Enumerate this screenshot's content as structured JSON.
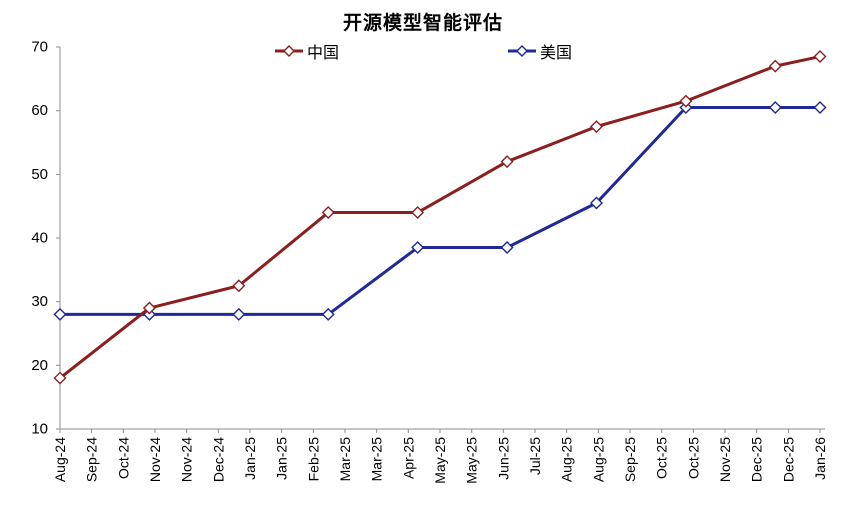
{
  "chart_data": {
    "type": "line",
    "title": "开源模型智能评估",
    "xlabel": "",
    "ylabel": "",
    "ylim": [
      10,
      70
    ],
    "y_ticks": [
      10,
      20,
      30,
      40,
      50,
      60,
      70
    ],
    "grid": false,
    "legend_position": "top-center",
    "marker_style": "diamond-white-fill",
    "axis_color": "#8C8C8C",
    "x_axis_span_months": 17,
    "x_tick_labels": [
      "Aug-24",
      "Sep-24",
      "Oct-24",
      "Nov-24",
      "Nov-24",
      "Dec-24",
      "Jan-25",
      "Jan-25",
      "Feb-25",
      "Mar-25",
      "Mar-25",
      "Apr-25",
      "May-25",
      "May-25",
      "Jun-25",
      "Jul-25",
      "Aug-25",
      "Aug-25",
      "Sep-25",
      "Oct-25",
      "Oct-25",
      "Nov-25",
      "Dec-25",
      "Dec-25",
      "Jan-26"
    ],
    "series": [
      {
        "id": "china",
        "name": "中国",
        "color": "#8C1E1E",
        "points": [
          {
            "label": "Aug-24",
            "m": 0,
            "value": 18
          },
          {
            "label": "Oct-24",
            "m": 2,
            "value": 29
          },
          {
            "label": "Dec-24",
            "m": 4,
            "value": 32.5
          },
          {
            "label": "Feb-25",
            "m": 6,
            "value": 44
          },
          {
            "label": "Apr-25",
            "m": 8,
            "value": 44
          },
          {
            "label": "Jun-25",
            "m": 10,
            "value": 52
          },
          {
            "label": "Aug-25",
            "m": 12,
            "value": 57.5
          },
          {
            "label": "Oct-25",
            "m": 14,
            "value": 61.5
          },
          {
            "label": "Dec-25",
            "m": 16,
            "value": 67
          },
          {
            "label": "Jan-26",
            "m": 17,
            "value": 68.5
          }
        ]
      },
      {
        "id": "us",
        "name": "美国",
        "color": "#1F2A96",
        "points": [
          {
            "label": "Aug-24",
            "m": 0,
            "value": 28
          },
          {
            "label": "Oct-24",
            "m": 2,
            "value": 28
          },
          {
            "label": "Dec-24",
            "m": 4,
            "value": 28
          },
          {
            "label": "Feb-25",
            "m": 6,
            "value": 28
          },
          {
            "label": "Apr-25",
            "m": 8,
            "value": 38.5
          },
          {
            "label": "Jun-25",
            "m": 10,
            "value": 38.5
          },
          {
            "label": "Aug-25",
            "m": 12,
            "value": 45.5
          },
          {
            "label": "Oct-25",
            "m": 14,
            "value": 60.5
          },
          {
            "label": "Dec-25",
            "m": 16,
            "value": 60.5
          },
          {
            "label": "Jan-26",
            "m": 17,
            "value": 60.5
          }
        ]
      }
    ]
  }
}
